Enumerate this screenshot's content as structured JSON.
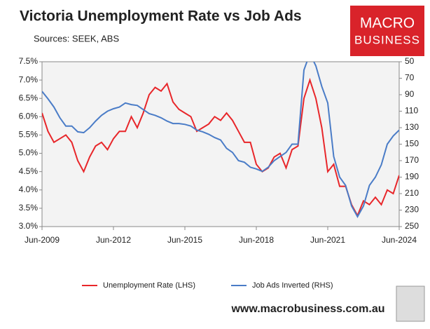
{
  "chart_data": {
    "type": "line",
    "title": "Victoria Unemployment Rate vs Job Ads",
    "subtitle": "Sources: SEEK, ABS",
    "logo": [
      "MACRO",
      "BUSINESS"
    ],
    "footer": "www.macrobusiness.com.au",
    "x": [
      "2009-06",
      "2009-09",
      "2009-12",
      "2010-03",
      "2010-06",
      "2010-09",
      "2010-12",
      "2011-03",
      "2011-06",
      "2011-09",
      "2011-12",
      "2012-03",
      "2012-06",
      "2012-09",
      "2012-12",
      "2013-03",
      "2013-06",
      "2013-09",
      "2013-12",
      "2014-03",
      "2014-06",
      "2014-09",
      "2014-12",
      "2015-03",
      "2015-06",
      "2015-09",
      "2015-12",
      "2016-03",
      "2016-06",
      "2016-09",
      "2016-12",
      "2017-03",
      "2017-06",
      "2017-09",
      "2017-12",
      "2018-03",
      "2018-06",
      "2018-09",
      "2018-12",
      "2019-03",
      "2019-06",
      "2019-09",
      "2019-12",
      "2020-03",
      "2020-06",
      "2020-09",
      "2020-12",
      "2021-03",
      "2021-06",
      "2021-09",
      "2021-12",
      "2022-03",
      "2022-06",
      "2022-09",
      "2022-12",
      "2023-03",
      "2023-06",
      "2023-09",
      "2023-12",
      "2024-03",
      "2024-06"
    ],
    "xlim": [
      "2009-06",
      "2024-06"
    ],
    "xticks": [
      {
        "value": "2009-06",
        "label": "Jun-2009"
      },
      {
        "value": "2012-06",
        "label": "Jun-2012"
      },
      {
        "value": "2015-06",
        "label": "Jun-2015"
      },
      {
        "value": "2018-06",
        "label": "Jun-2018"
      },
      {
        "value": "2021-06",
        "label": "Jun-2021"
      },
      {
        "value": "2024-06",
        "label": "Jun-2024"
      }
    ],
    "ylim": [
      3.0,
      7.5
    ],
    "yticks": [
      {
        "value": 3.0,
        "label": "3.0%"
      },
      {
        "value": 3.5,
        "label": "3.5%"
      },
      {
        "value": 4.0,
        "label": "4.0%"
      },
      {
        "value": 4.5,
        "label": "4.5%"
      },
      {
        "value": 5.0,
        "label": "5.0%"
      },
      {
        "value": 5.5,
        "label": "5.5%"
      },
      {
        "value": 6.0,
        "label": "6.0%"
      },
      {
        "value": 6.5,
        "label": "6.5%"
      },
      {
        "value": 7.0,
        "label": "7.0%"
      },
      {
        "value": 7.5,
        "label": "7.5%"
      }
    ],
    "y2lim": [
      250,
      50
    ],
    "y2ticks": [
      250,
      230,
      210,
      190,
      170,
      150,
      130,
      110,
      90,
      70,
      50
    ],
    "grid": false,
    "legend": "bottom",
    "series": [
      {
        "name": "Unemployment Rate (LHS)",
        "color": "#e8262a",
        "values": [
          6.1,
          5.6,
          5.3,
          5.4,
          5.5,
          5.3,
          4.8,
          4.5,
          4.9,
          5.2,
          5.3,
          5.1,
          5.4,
          5.6,
          5.6,
          6.0,
          5.7,
          6.1,
          6.6,
          6.8,
          6.7,
          6.9,
          6.4,
          6.2,
          6.1,
          6.0,
          5.6,
          5.7,
          5.8,
          6.0,
          5.9,
          6.1,
          5.9,
          5.6,
          5.3,
          5.3,
          4.7,
          4.5,
          4.6,
          4.9,
          5.0,
          4.6,
          5.1,
          5.2,
          6.5,
          7.0,
          6.5,
          5.7,
          4.5,
          4.7,
          4.1,
          4.1,
          3.6,
          3.3,
          3.7,
          3.6,
          3.8,
          3.6,
          4.0,
          3.9,
          4.4
        ]
      },
      {
        "name": "Job Ads Inverted (RHS)",
        "color": "#4a7cc7",
        "axis": "y2",
        "values": [
          86,
          95,
          105,
          118,
          128,
          128,
          135,
          136,
          130,
          122,
          115,
          110,
          107,
          105,
          100,
          102,
          103,
          108,
          113,
          115,
          118,
          122,
          125,
          125,
          126,
          128,
          133,
          135,
          138,
          142,
          145,
          155,
          160,
          170,
          172,
          178,
          180,
          183,
          178,
          170,
          165,
          160,
          150,
          150,
          60,
          40,
          55,
          80,
          100,
          165,
          190,
          200,
          225,
          238,
          225,
          200,
          190,
          175,
          150,
          140,
          133
        ]
      }
    ]
  }
}
